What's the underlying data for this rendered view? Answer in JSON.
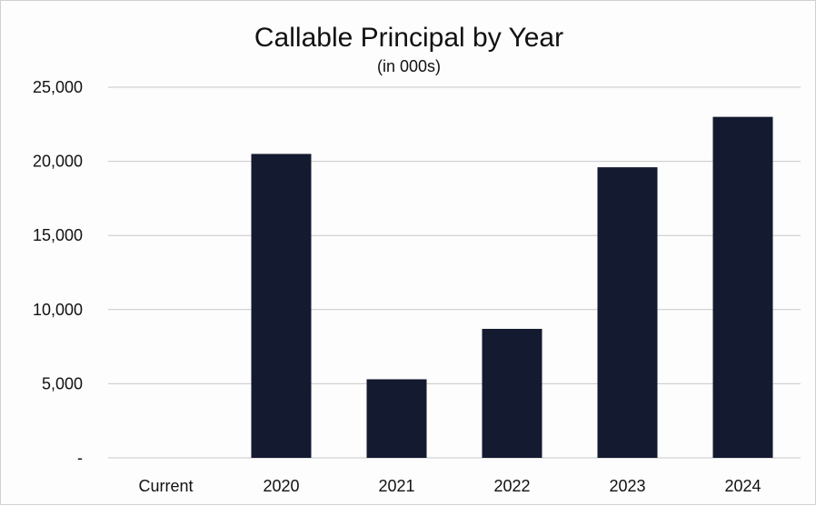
{
  "chart_data": {
    "type": "bar",
    "title": "Callable Principal by Year",
    "subtitle": "(in 000s)",
    "categories": [
      "Current",
      "2020",
      "2021",
      "2022",
      "2023",
      "2024"
    ],
    "values": [
      0,
      20500,
      5300,
      8700,
      19600,
      23000
    ],
    "ylim": [
      0,
      25000
    ],
    "yticks": [
      0,
      5000,
      10000,
      15000,
      20000,
      25000
    ],
    "ytick_labels": [
      "-",
      "5,000",
      "10,000",
      "15,000",
      "20,000",
      "25,000"
    ],
    "grid": true,
    "bar_color": "#141a30",
    "grid_color": "#c8c8c8"
  }
}
